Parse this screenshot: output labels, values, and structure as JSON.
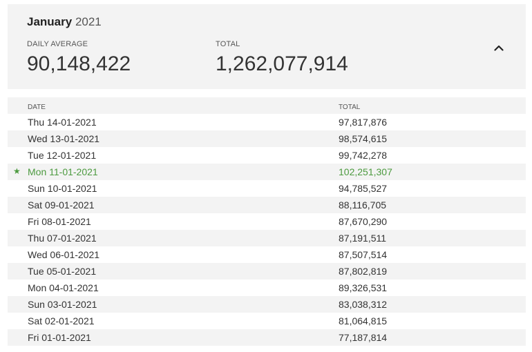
{
  "summary": {
    "month": "January",
    "year": "2021",
    "daily_average_label": "DAILY AVERAGE",
    "daily_average_value": "90,148,422",
    "total_label": "TOTAL",
    "total_value": "1,262,077,914",
    "collapse_icon": "chevron-up-icon"
  },
  "table": {
    "headers": {
      "date": "DATE",
      "total": "TOTAL"
    },
    "rows": [
      {
        "date": "Thu 14-01-2021",
        "total": "97,817,876"
      },
      {
        "date": "Wed 13-01-2021",
        "total": "98,574,615"
      },
      {
        "date": "Tue 12-01-2021",
        "total": "99,742,278"
      },
      {
        "date": "Mon 11-01-2021",
        "total": "102,251,307",
        "starred": true,
        "star": "★"
      },
      {
        "date": "Sun 10-01-2021",
        "total": "94,785,527"
      },
      {
        "date": "Sat 09-01-2021",
        "total": "88,116,705"
      },
      {
        "date": "Fri 08-01-2021",
        "total": "87,670,290"
      },
      {
        "date": "Thu 07-01-2021",
        "total": "87,191,511"
      },
      {
        "date": "Wed 06-01-2021",
        "total": "87,507,514"
      },
      {
        "date": "Tue 05-01-2021",
        "total": "87,802,819"
      },
      {
        "date": "Mon 04-01-2021",
        "total": "89,326,531"
      },
      {
        "date": "Sun 03-01-2021",
        "total": "83,038,312"
      },
      {
        "date": "Sat 02-01-2021",
        "total": "81,064,815"
      },
      {
        "date": "Fri 01-01-2021",
        "total": "77,187,814"
      }
    ]
  },
  "colors": {
    "highlight": "#4c9a3f",
    "band": "#f3f3f3"
  }
}
